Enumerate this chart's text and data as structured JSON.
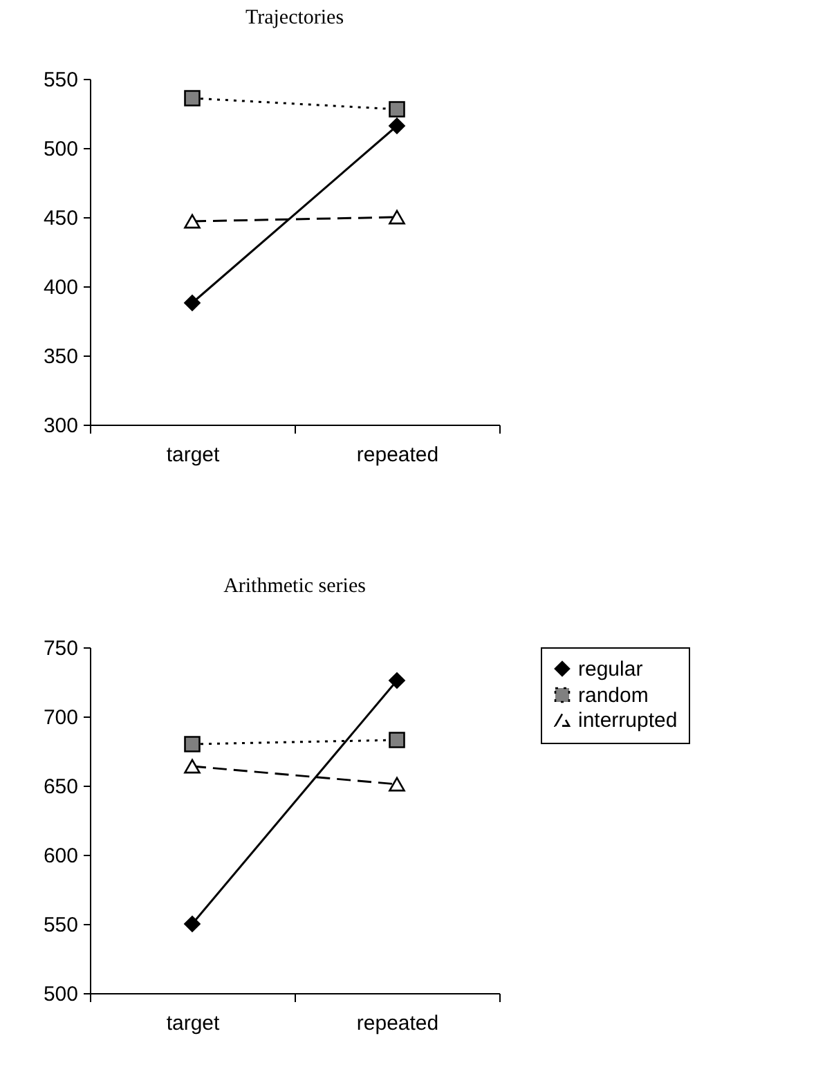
{
  "chart_data": [
    {
      "type": "line",
      "title": "Trajectories",
      "categories": [
        "target",
        "repeated"
      ],
      "series": [
        {
          "color": "#000000",
          "values": [
            388,
            516
          ],
          "marker": "diamond",
          "line_style": "solid"
        },
        {
          "color": "#808080",
          "values": [
            536,
            528
          ],
          "marker": "square",
          "line_style": "dotted"
        },
        {
          "color": "#ffffff",
          "values": [
            447,
            450
          ],
          "marker": "triangle",
          "line_style": "dashed"
        }
      ],
      "ylim": [
        300,
        550
      ],
      "yticks": [
        300,
        350,
        400,
        450,
        500,
        550
      ],
      "grid": false
    },
    {
      "type": "line",
      "title": "Arithmetic series",
      "categories": [
        "target",
        "repeated"
      ],
      "series": [
        {
          "name": "regular",
          "color": "#000000",
          "values": [
            550,
            726
          ],
          "marker": "diamond",
          "line_style": "solid"
        },
        {
          "name": "random",
          "color": "#808080",
          "values": [
            680,
            683
          ],
          "marker": "square",
          "line_style": "dotted"
        },
        {
          "name": "interrupted",
          "color": "#ffffff",
          "values": [
            664,
            651
          ],
          "marker": "triangle",
          "line_style": "dashed"
        }
      ],
      "ylim": [
        500,
        750
      ],
      "yticks": [
        500,
        550,
        600,
        650,
        700,
        750
      ],
      "grid": false,
      "legend": "right"
    }
  ]
}
